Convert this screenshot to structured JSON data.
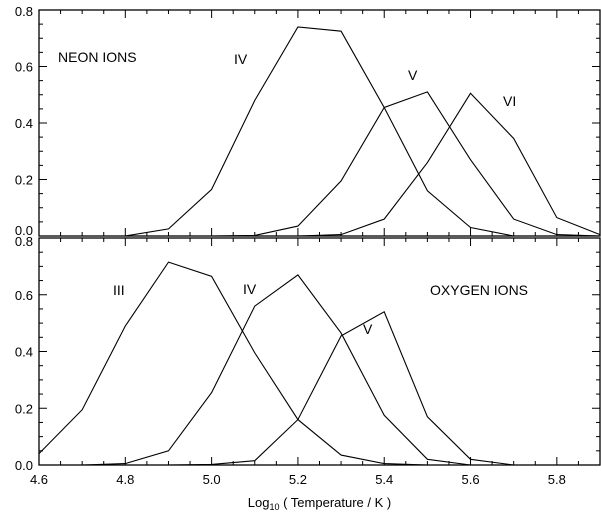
{
  "chart_data": [
    {
      "type": "line",
      "annotation": "NEON IONS",
      "xlim": [
        4.6,
        5.9
      ],
      "ylim": [
        0.0,
        0.8
      ],
      "yticks": [
        "0.0",
        "0.2",
        "0.4",
        "0.6",
        "0.8"
      ],
      "series": [
        {
          "label": "IV",
          "x": [
            4.6,
            4.7,
            4.8,
            4.9,
            5.0,
            5.1,
            5.2,
            5.3,
            5.4,
            5.5,
            5.6,
            5.7,
            5.8,
            5.9
          ],
          "y": [
            0.0,
            0.0,
            0.0,
            0.025,
            0.165,
            0.48,
            0.74,
            0.725,
            0.455,
            0.16,
            0.03,
            0.0,
            0.0,
            0.0
          ]
        },
        {
          "label": "V",
          "x": [
            4.6,
            4.7,
            4.8,
            4.9,
            5.0,
            5.1,
            5.2,
            5.3,
            5.4,
            5.5,
            5.6,
            5.7,
            5.8,
            5.9
          ],
          "y": [
            0.0,
            0.0,
            0.0,
            0.0,
            0.0,
            0.002,
            0.035,
            0.195,
            0.455,
            0.51,
            0.27,
            0.06,
            0.005,
            0.0
          ]
        },
        {
          "label": "VI",
          "x": [
            4.6,
            4.7,
            4.8,
            4.9,
            5.0,
            5.1,
            5.2,
            5.3,
            5.4,
            5.5,
            5.6,
            5.7,
            5.8,
            5.9
          ],
          "y": [
            0.0,
            0.0,
            0.0,
            0.0,
            0.0,
            0.0,
            0.0,
            0.005,
            0.06,
            0.26,
            0.505,
            0.345,
            0.065,
            0.005
          ]
        }
      ]
    },
    {
      "type": "line",
      "annotation": "OXYGEN IONS",
      "xlim": [
        4.6,
        5.9
      ],
      "ylim": [
        0.0,
        0.8
      ],
      "yticks": [
        "0.0",
        "0.2",
        "0.4",
        "0.6",
        "0.8"
      ],
      "xticks": [
        "4.6",
        "4.8",
        "5.0",
        "5.2",
        "5.4",
        "5.6",
        "5.8"
      ],
      "xlabel_prefix": "Log",
      "xlabel_sub": "10",
      "xlabel_rest": " ( Temperature / K )",
      "series": [
        {
          "label": "III",
          "x": [
            4.6,
            4.7,
            4.8,
            4.9,
            5.0,
            5.1,
            5.2,
            5.3,
            5.4,
            5.5,
            5.6,
            5.7,
            5.8,
            5.9
          ],
          "y": [
            0.04,
            0.195,
            0.49,
            0.715,
            0.665,
            0.395,
            0.16,
            0.035,
            0.005,
            0.0,
            0.0,
            0.0,
            0.0,
            0.0
          ]
        },
        {
          "label": "IV",
          "x": [
            4.6,
            4.7,
            4.8,
            4.9,
            5.0,
            5.1,
            5.2,
            5.3,
            5.4,
            5.5,
            5.6,
            5.7,
            5.8,
            5.9
          ],
          "y": [
            0.0,
            0.0,
            0.005,
            0.05,
            0.255,
            0.56,
            0.67,
            0.465,
            0.175,
            0.02,
            0.0,
            0.0,
            0.0,
            0.0
          ]
        },
        {
          "label": "V",
          "x": [
            4.6,
            4.7,
            4.8,
            4.9,
            5.0,
            5.1,
            5.2,
            5.3,
            5.4,
            5.5,
            5.6,
            5.7,
            5.8,
            5.9
          ],
          "y": [
            0.0,
            0.0,
            0.0,
            0.0,
            0.002,
            0.015,
            0.16,
            0.455,
            0.54,
            0.17,
            0.02,
            0.0,
            0.0,
            0.0
          ]
        }
      ]
    }
  ]
}
